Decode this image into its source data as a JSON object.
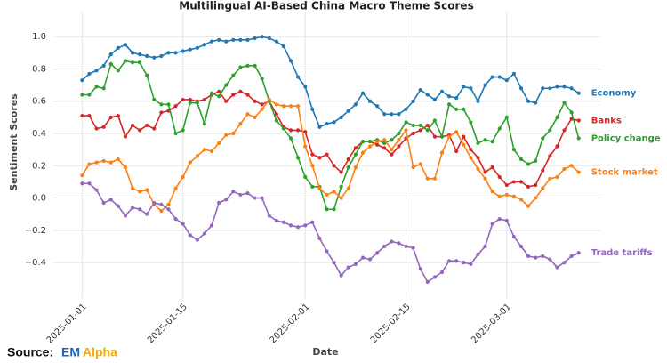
{
  "chart_data": {
    "type": "line",
    "title": "Multilingual AI-Based China Macro Theme Scores",
    "x_label": "Date",
    "y_label": "Sentiment Scores",
    "grid": true,
    "legend": "line-end",
    "x": [
      "2025-01-01",
      "2025-01-02",
      "2025-01-03",
      "2025-01-04",
      "2025-01-05",
      "2025-01-06",
      "2025-01-07",
      "2025-01-08",
      "2025-01-09",
      "2025-01-10",
      "2025-01-11",
      "2025-01-12",
      "2025-01-13",
      "2025-01-14",
      "2025-01-15",
      "2025-01-16",
      "2025-01-17",
      "2025-01-18",
      "2025-01-19",
      "2025-01-20",
      "2025-01-21",
      "2025-01-22",
      "2025-01-23",
      "2025-01-24",
      "2025-01-25",
      "2025-01-26",
      "2025-01-27",
      "2025-01-28",
      "2025-01-29",
      "2025-01-30",
      "2025-01-31",
      "2025-02-01",
      "2025-02-02",
      "2025-02-03",
      "2025-02-04",
      "2025-02-05",
      "2025-02-06",
      "2025-02-07",
      "2025-02-08",
      "2025-02-09",
      "2025-02-10",
      "2025-02-11",
      "2025-02-12",
      "2025-02-13",
      "2025-02-14",
      "2025-02-15",
      "2025-02-16",
      "2025-02-17",
      "2025-02-18",
      "2025-02-19",
      "2025-02-20",
      "2025-02-21",
      "2025-02-22",
      "2025-02-23",
      "2025-02-24",
      "2025-02-25",
      "2025-02-26",
      "2025-02-27",
      "2025-02-28",
      "2025-03-01",
      "2025-03-02",
      "2025-03-03",
      "2025-03-04",
      "2025-03-05",
      "2025-03-06",
      "2025-03-07",
      "2025-03-08",
      "2025-03-09",
      "2025-03-10",
      "2025-03-11"
    ],
    "xlim": [
      "2024-12-28",
      "2025-03-14"
    ],
    "xticks": [
      "2025-01-01",
      "2025-01-15",
      "2025-02-01",
      "2025-02-15",
      "2025-03-01"
    ],
    "ylim": [
      -0.62,
      1.15
    ],
    "yticks": [
      {
        "value": 1,
        "label": "1.0"
      },
      0.8,
      0.6,
      0.4,
      0.2,
      {
        "value": 0,
        "label": "0.0"
      },
      {
        "value": -0.2,
        "label": "−0.2"
      },
      {
        "value": -0.4,
        "label": "−0.4"
      }
    ],
    "series": [
      {
        "name": "Economy",
        "color": "#1f77b4",
        "values": [
          0.73,
          0.77,
          0.79,
          0.82,
          0.89,
          0.93,
          0.95,
          0.9,
          0.89,
          0.88,
          0.87,
          0.88,
          0.9,
          0.9,
          0.91,
          0.92,
          0.93,
          0.95,
          0.97,
          0.98,
          0.97,
          0.98,
          0.98,
          0.98,
          0.99,
          1.0,
          0.99,
          0.97,
          0.94,
          0.85,
          0.75,
          0.69,
          0.55,
          0.44,
          0.46,
          0.47,
          0.5,
          0.54,
          0.58,
          0.65,
          0.6,
          0.57,
          0.52,
          0.52,
          0.52,
          0.55,
          0.6,
          0.67,
          0.64,
          0.61,
          0.66,
          0.63,
          0.62,
          0.69,
          0.68,
          0.6,
          0.7,
          0.75,
          0.75,
          0.73,
          0.77,
          0.68,
          0.6,
          0.59,
          0.68,
          0.68,
          0.69,
          0.69,
          0.68,
          0.65
        ]
      },
      {
        "name": "Banks",
        "color": "#d62728",
        "values": [
          0.51,
          0.51,
          0.43,
          0.44,
          0.5,
          0.51,
          0.38,
          0.45,
          0.42,
          0.45,
          0.43,
          0.53,
          0.54,
          0.57,
          0.61,
          0.61,
          0.6,
          0.61,
          0.64,
          0.66,
          0.6,
          0.64,
          0.66,
          0.64,
          0.6,
          0.58,
          0.6,
          0.52,
          0.44,
          0.42,
          0.42,
          0.41,
          0.27,
          0.25,
          0.27,
          0.2,
          0.16,
          0.24,
          0.31,
          0.35,
          0.35,
          0.33,
          0.31,
          0.27,
          0.32,
          0.37,
          0.4,
          0.42,
          0.45,
          0.38,
          0.38,
          0.39,
          0.29,
          0.38,
          0.3,
          0.25,
          0.16,
          0.19,
          0.13,
          0.08,
          0.1,
          0.1,
          0.07,
          0.08,
          0.17,
          0.26,
          0.32,
          0.42,
          0.49,
          0.48
        ]
      },
      {
        "name": "Policy change",
        "color": "#2ca02c",
        "values": [
          0.64,
          0.64,
          0.69,
          0.68,
          0.83,
          0.79,
          0.85,
          0.84,
          0.84,
          0.76,
          0.61,
          0.58,
          0.58,
          0.4,
          0.42,
          0.59,
          0.59,
          0.46,
          0.65,
          0.63,
          0.7,
          0.76,
          0.81,
          0.82,
          0.82,
          0.74,
          0.6,
          0.48,
          0.43,
          0.37,
          0.25,
          0.13,
          0.07,
          0.07,
          -0.07,
          -0.07,
          0.07,
          0.19,
          0.27,
          0.35,
          0.35,
          0.36,
          0.34,
          0.36,
          0.4,
          0.47,
          0.45,
          0.45,
          0.42,
          0.48,
          0.38,
          0.58,
          0.55,
          0.55,
          0.47,
          0.34,
          0.36,
          0.35,
          0.43,
          0.5,
          0.3,
          0.24,
          0.21,
          0.23,
          0.37,
          0.42,
          0.5,
          0.59,
          0.53,
          0.37
        ]
      },
      {
        "name": "Stock market",
        "color": "#ff7f0e",
        "values": [
          0.14,
          0.21,
          0.22,
          0.23,
          0.22,
          0.24,
          0.19,
          0.06,
          0.04,
          0.05,
          -0.04,
          -0.08,
          -0.04,
          0.06,
          0.13,
          0.22,
          0.26,
          0.3,
          0.29,
          0.34,
          0.39,
          0.4,
          0.46,
          0.52,
          0.5,
          0.55,
          0.61,
          0.58,
          0.57,
          0.57,
          0.57,
          0.32,
          0.2,
          0.06,
          0.02,
          0.04,
          0.0,
          0.06,
          0.19,
          0.28,
          0.32,
          0.35,
          0.36,
          0.3,
          0.36,
          0.42,
          0.19,
          0.21,
          0.12,
          0.12,
          0.28,
          0.38,
          0.41,
          0.33,
          0.25,
          0.18,
          0.12,
          0.04,
          0.01,
          0.02,
          0.01,
          -0.01,
          -0.05,
          0.0,
          0.06,
          0.12,
          0.13,
          0.18,
          0.2,
          0.16
        ]
      },
      {
        "name": "Trade tariffs",
        "color": "#9467bd",
        "values": [
          0.09,
          0.09,
          0.05,
          -0.03,
          -0.01,
          -0.05,
          -0.11,
          -0.06,
          -0.07,
          -0.1,
          -0.03,
          -0.04,
          -0.07,
          -0.13,
          -0.16,
          -0.23,
          -0.26,
          -0.22,
          -0.17,
          -0.03,
          -0.01,
          0.04,
          0.02,
          0.03,
          0.0,
          0.0,
          -0.11,
          -0.14,
          -0.15,
          -0.17,
          -0.18,
          -0.17,
          -0.15,
          -0.25,
          -0.33,
          -0.4,
          -0.48,
          -0.43,
          -0.41,
          -0.37,
          -0.38,
          -0.34,
          -0.3,
          -0.27,
          -0.28,
          -0.3,
          -0.31,
          -0.44,
          -0.52,
          -0.49,
          -0.46,
          -0.39,
          -0.39,
          -0.4,
          -0.41,
          -0.35,
          -0.3,
          -0.16,
          -0.13,
          -0.14,
          -0.24,
          -0.3,
          -0.36,
          -0.37,
          -0.36,
          -0.38,
          -0.43,
          -0.4,
          -0.36,
          -0.34
        ]
      }
    ]
  },
  "source": {
    "label": "Source:",
    "brand": [
      "EM",
      "Alpha"
    ]
  }
}
